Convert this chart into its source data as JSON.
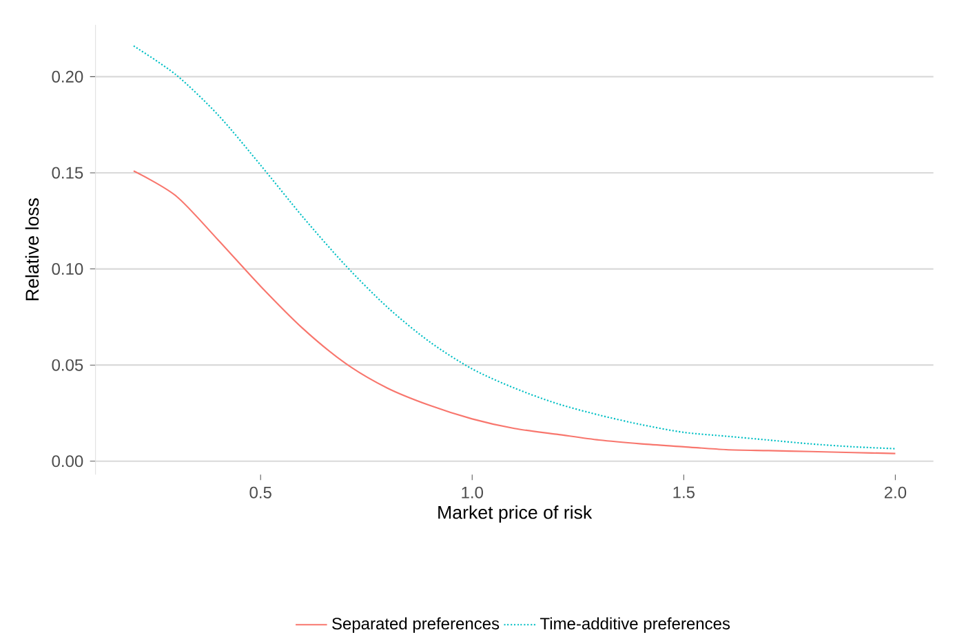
{
  "chart_data": {
    "type": "line",
    "xlabel": "Market price of risk",
    "ylabel": "Relative loss",
    "xlim": [
      0.11,
      2.09
    ],
    "ylim": [
      -0.007,
      0.227
    ],
    "xticks": [
      0.5,
      {
        "value": 1,
        "label": "1.0"
      },
      1.5,
      {
        "value": 2,
        "label": "2.0"
      }
    ],
    "yticks": [
      {
        "value": 0,
        "label": "0.00"
      },
      {
        "value": 0.05,
        "label": "0.05"
      },
      {
        "value": 0.1,
        "label": "0.10"
      },
      {
        "value": 0.15,
        "label": "0.15"
      },
      {
        "value": 0.2,
        "label": "0.20"
      }
    ],
    "grid": "y",
    "legend": "bottom",
    "marker": "none",
    "x": [
      0.2,
      0.3,
      0.4,
      0.5,
      0.6,
      0.7,
      0.8,
      0.9,
      1.0,
      1.1,
      1.2,
      1.3,
      1.4,
      1.5,
      1.6,
      1.7,
      1.8,
      1.9,
      2.0
    ],
    "series": [
      {
        "name": "Separated preferences",
        "color": "#f8766d",
        "line_style": "solid",
        "values": [
          0.151,
          0.138,
          0.115,
          0.091,
          0.069,
          0.051,
          0.038,
          0.029,
          0.022,
          0.017,
          0.014,
          0.011,
          0.009,
          0.0075,
          0.006,
          0.0055,
          0.005,
          0.0045,
          0.004
        ]
      },
      {
        "name": "Time-additive preferences",
        "color": "#00bfc4",
        "line_style": "dotted",
        "values": [
          0.216,
          0.201,
          0.18,
          0.154,
          0.127,
          0.102,
          0.08,
          0.062,
          0.048,
          0.038,
          0.03,
          0.024,
          0.019,
          0.015,
          0.013,
          0.011,
          0.009,
          0.0075,
          0.0065
        ]
      }
    ]
  }
}
